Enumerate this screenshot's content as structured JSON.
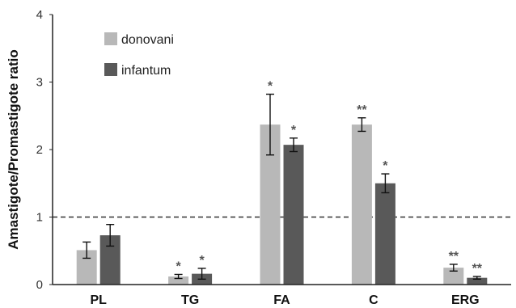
{
  "chart_data": {
    "type": "bar",
    "ylabel": "Amastigote/Promastigote ratio",
    "xlabel": "",
    "ylim": [
      0,
      4
    ],
    "yticks": [
      "0",
      "1",
      "2",
      "3",
      "4"
    ],
    "categories": [
      "PL",
      "TG",
      "FA",
      "C",
      "ERG"
    ],
    "reference_line": 1,
    "legend_position": "top-left",
    "series": [
      {
        "name": "donovani",
        "color": "#b8b8b8",
        "values": [
          0.51,
          0.12,
          2.37,
          2.37,
          0.25
        ],
        "errors": [
          0.12,
          0.03,
          0.45,
          0.1,
          0.05
        ],
        "significance": [
          "",
          "*",
          "*",
          "**",
          "**"
        ]
      },
      {
        "name": "infantum",
        "color": "#595959",
        "values": [
          0.73,
          0.16,
          2.07,
          1.5,
          0.1
        ],
        "errors": [
          0.16,
          0.08,
          0.1,
          0.14,
          0.02
        ],
        "significance": [
          "",
          "*",
          "*",
          "*",
          "**"
        ]
      }
    ]
  }
}
